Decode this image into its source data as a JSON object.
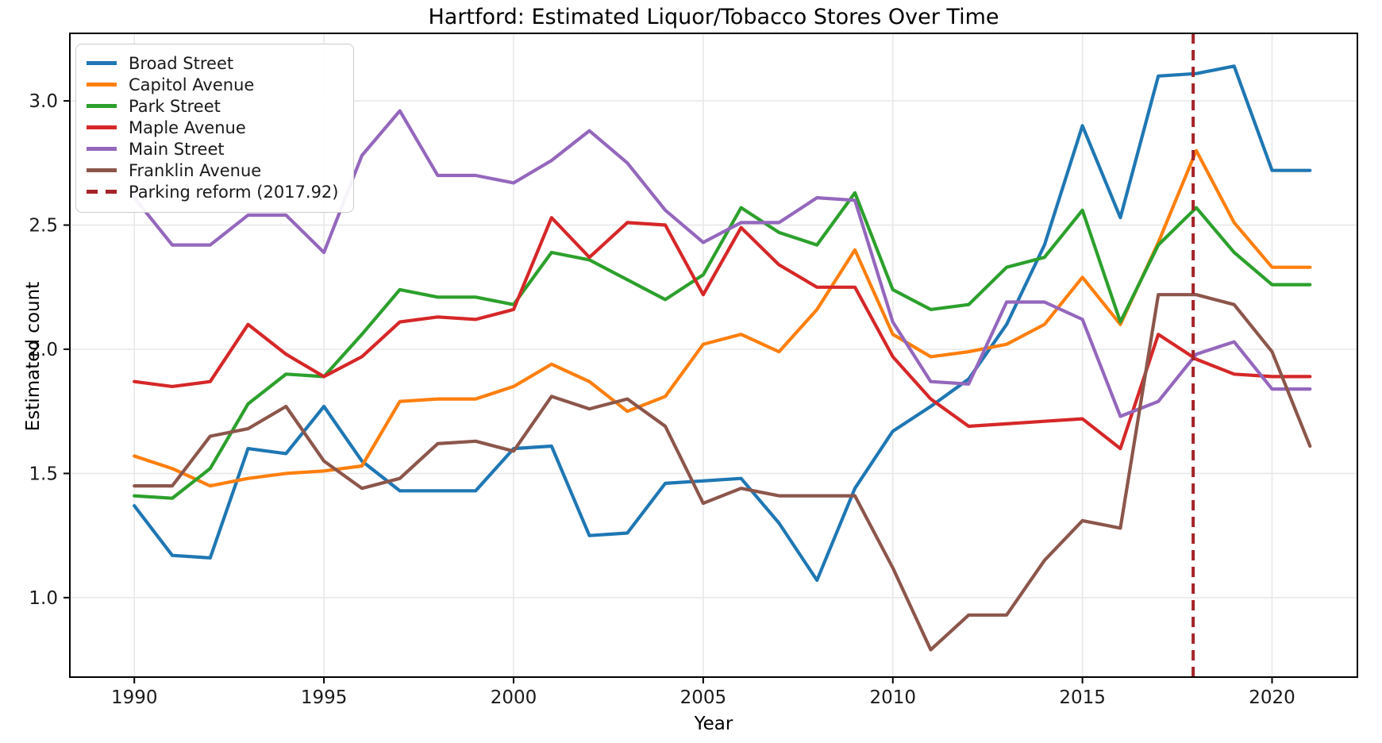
{
  "chart_data": {
    "type": "line",
    "title": "Hartford: Estimated Liquor/Tobacco Stores Over Time",
    "xlabel": "Year",
    "ylabel": "Estimated count",
    "grid": true,
    "legend_position": "upper left",
    "xlim": [
      1988.3,
      2022.25
    ],
    "ylim": [
      0.68,
      3.272
    ],
    "xticks": [
      1990,
      1995,
      2000,
      2005,
      2010,
      2015,
      2020
    ],
    "yticks": [
      "1.0",
      "1.5",
      "2.0",
      "2.5",
      "3.0"
    ],
    "x": [
      1990,
      1991,
      1992,
      1993,
      1994,
      1995,
      1996,
      1997,
      1998,
      1999,
      2000,
      2001,
      2002,
      2003,
      2004,
      2005,
      2006,
      2007,
      2008,
      2009,
      2010,
      2011,
      2012,
      2013,
      2014,
      2015,
      2016,
      2017,
      2018,
      2019,
      2020,
      2021
    ],
    "series": [
      {
        "name": "Broad Street",
        "color": "#1f77b4",
        "values": [
          1.37,
          1.17,
          1.16,
          1.6,
          1.58,
          1.77,
          1.55,
          1.43,
          1.43,
          1.43,
          1.6,
          1.61,
          1.25,
          1.26,
          1.46,
          1.47,
          1.48,
          1.3,
          1.07,
          1.44,
          1.67,
          1.77,
          1.88,
          2.1,
          2.42,
          2.9,
          2.53,
          3.1,
          3.11,
          3.14,
          2.72,
          2.72
        ]
      },
      {
        "name": "Capitol Avenue",
        "color": "#ff7f0e",
        "values": [
          1.57,
          1.52,
          1.45,
          1.48,
          1.5,
          1.51,
          1.53,
          1.79,
          1.8,
          1.8,
          1.85,
          1.94,
          1.87,
          1.75,
          1.81,
          2.02,
          2.06,
          1.99,
          2.16,
          2.4,
          2.06,
          1.97,
          1.99,
          2.02,
          2.1,
          2.29,
          2.1,
          2.43,
          2.8,
          2.51,
          2.33,
          2.33
        ]
      },
      {
        "name": "Park Street",
        "color": "#2ca02c",
        "values": [
          1.41,
          1.4,
          1.52,
          1.78,
          1.9,
          1.89,
          2.06,
          2.24,
          2.21,
          2.21,
          2.18,
          2.39,
          2.36,
          2.28,
          2.2,
          2.3,
          2.57,
          2.47,
          2.42,
          2.63,
          2.24,
          2.16,
          2.18,
          2.33,
          2.37,
          2.56,
          2.11,
          2.42,
          2.57,
          2.39,
          2.26,
          2.26
        ]
      },
      {
        "name": "Maple Avenue",
        "color": "#d62728",
        "values": [
          1.87,
          1.85,
          1.87,
          2.1,
          1.98,
          1.89,
          1.97,
          2.11,
          2.13,
          2.12,
          2.16,
          2.53,
          2.37,
          2.51,
          2.5,
          2.22,
          2.49,
          2.34,
          2.25,
          2.25,
          1.97,
          1.8,
          1.69,
          1.7,
          1.71,
          1.72,
          1.6,
          2.06,
          1.96,
          1.9,
          1.89,
          1.89
        ]
      },
      {
        "name": "Main Street",
        "color": "#9467bd",
        "values": [
          2.61,
          2.42,
          2.42,
          2.54,
          2.54,
          2.39,
          2.78,
          2.96,
          2.7,
          2.7,
          2.67,
          2.76,
          2.88,
          2.75,
          2.56,
          2.43,
          2.51,
          2.51,
          2.61,
          2.6,
          2.11,
          1.87,
          1.86,
          2.19,
          2.19,
          2.12,
          1.73,
          1.79,
          1.98,
          2.03,
          1.84,
          1.84
        ]
      },
      {
        "name": "Franklin Avenue",
        "color": "#8c564b",
        "values": [
          1.45,
          1.45,
          1.65,
          1.68,
          1.77,
          1.55,
          1.44,
          1.48,
          1.62,
          1.63,
          1.59,
          1.81,
          1.76,
          1.8,
          1.69,
          1.38,
          1.44,
          1.41,
          1.41,
          1.41,
          1.12,
          0.79,
          0.93,
          0.93,
          1.15,
          1.31,
          1.28,
          2.22,
          2.22,
          2.18,
          1.99,
          1.61
        ]
      }
    ],
    "vline": {
      "x": 2017.92,
      "label": "Parking reform (2017.92)",
      "color": "#a52328",
      "style": "dashed"
    },
    "legend_entries": [
      "Broad Street",
      "Capitol Avenue",
      "Park Street",
      "Maple Avenue",
      "Main Street",
      "Franklin Avenue",
      "Parking reform (2017.92)"
    ]
  },
  "style_tokens": {
    "grid_color": "#e8e8e8",
    "spine_color": "#000000",
    "tick_label_color": "#1a1a1a",
    "background": "#ffffff"
  }
}
